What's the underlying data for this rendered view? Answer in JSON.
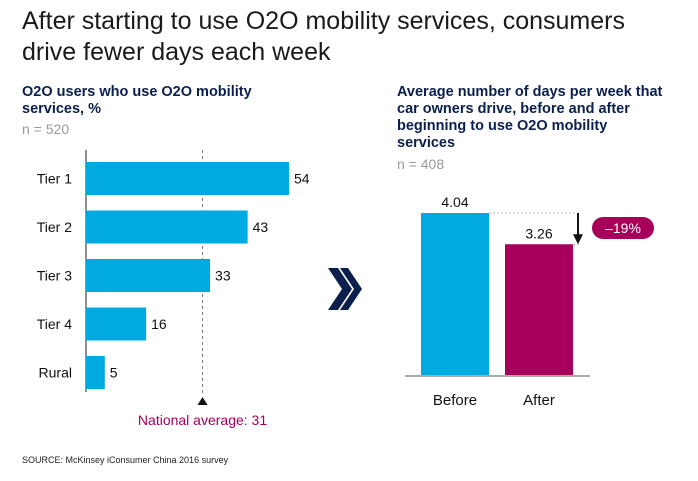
{
  "title": "After starting to use O2O mobility services, consumers drive fewer days each week",
  "source": "SOURCE: McKinsey iConsumer China 2016 survey",
  "colors": {
    "bar_blue": "#00a9e0",
    "bar_after": "#a6005a",
    "navy": "#0b1f4d",
    "magenta_text": "#a6005a"
  },
  "chart_data": [
    {
      "type": "bar",
      "orientation": "horizontal",
      "title": "O2O users who use O2O mobility services, %",
      "sample": "n = 520",
      "categories": [
        "Tier 1",
        "Tier 2",
        "Tier 3",
        "Tier 4",
        "Rural"
      ],
      "values": [
        54,
        43,
        33,
        16,
        5
      ],
      "reference_line": {
        "value": 31,
        "label": "National average: 31"
      },
      "xlim": [
        0,
        54
      ]
    },
    {
      "type": "bar",
      "title": "Average number of days per week that car owners drive, before and after beginning to use O2O mobility services",
      "sample": "n = 408",
      "categories": [
        "Before",
        "After"
      ],
      "values": [
        4.04,
        3.26
      ],
      "value_labels": [
        "4.04",
        "3.26"
      ],
      "change_label": "–19%",
      "ylim": [
        0,
        4.04
      ]
    }
  ]
}
